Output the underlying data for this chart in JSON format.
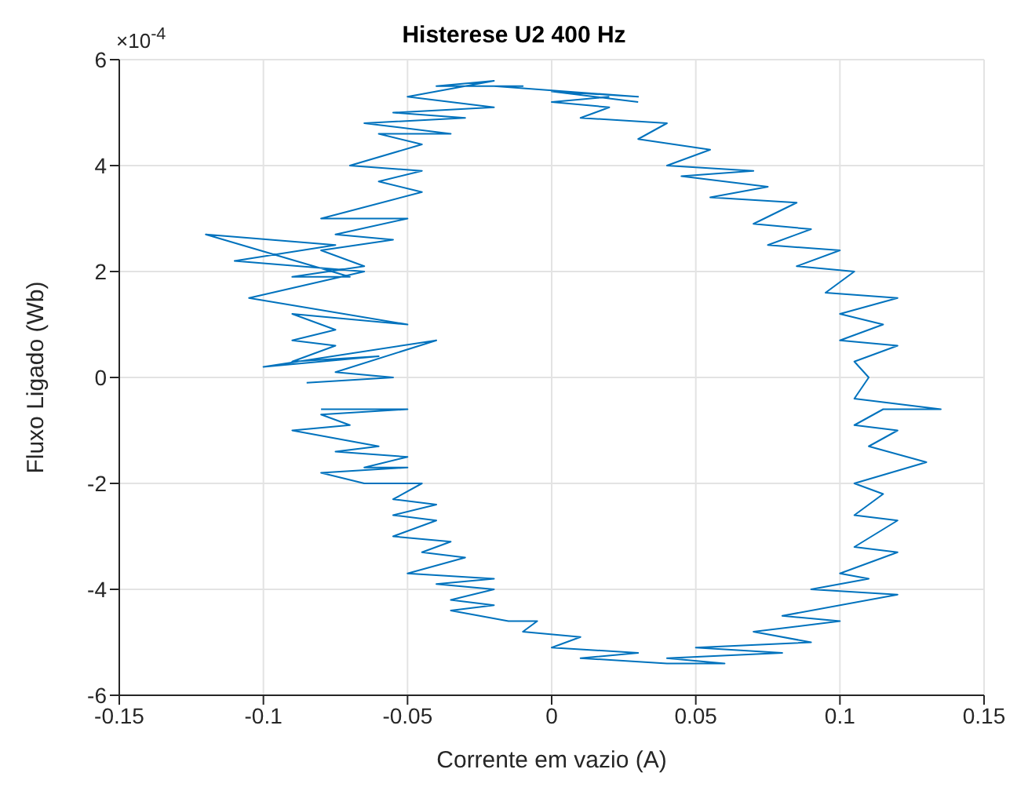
{
  "chart_data": {
    "type": "line",
    "title": "Histerese U2 400 Hz",
    "xlabel": "Corrente em vazio (A)",
    "ylabel": "Fluxo Ligado (Wb)",
    "annotations": [
      "×10$^{-4}$"
    ],
    "xlim": [
      -0.15,
      0.15
    ],
    "xticks": [
      -0.15,
      -0.1,
      -0.05,
      0,
      0.05,
      0.1,
      0.15
    ],
    "ylim": [
      -6,
      6
    ],
    "yticks": [
      -6,
      -4,
      -2,
      0,
      2,
      4,
      6
    ],
    "grid": true,
    "marker": "none",
    "line_style": "solid",
    "series": [
      {
        "color": "#0072bd",
        "x": [
          0.03,
          0.0,
          0.03,
          -0.02,
          -0.01,
          -0.04,
          -0.02,
          -0.05,
          -0.02,
          -0.055,
          -0.03,
          -0.065,
          -0.035,
          -0.06,
          -0.045,
          -0.07,
          -0.045,
          -0.06,
          -0.045,
          -0.08,
          -0.05,
          -0.075,
          -0.055,
          -0.08,
          -0.065,
          -0.09,
          -0.07,
          -0.12,
          -0.075,
          -0.11,
          -0.065,
          -0.105,
          -0.05,
          -0.09,
          -0.075,
          -0.09,
          -0.075,
          -0.09,
          -0.06,
          -0.1,
          -0.04,
          -0.075,
          -0.055,
          -0.085,
          -0.083,
          -0.08,
          -0.05,
          -0.08,
          -0.07,
          -0.09,
          -0.06,
          -0.075,
          -0.05,
          -0.065,
          -0.05,
          -0.08,
          -0.065,
          -0.045,
          -0.055,
          -0.04,
          -0.055,
          -0.04,
          -0.055,
          -0.035,
          -0.045,
          -0.03,
          -0.05,
          -0.02,
          -0.04,
          -0.02,
          -0.035,
          -0.02,
          -0.035,
          -0.015,
          -0.005,
          -0.01,
          0.01,
          0.0,
          0.03,
          0.01,
          0.04,
          0.05,
          0.06,
          0.04,
          0.08,
          0.05,
          0.09,
          0.07,
          0.1,
          0.08,
          0.12,
          0.09,
          0.11,
          0.1,
          0.12,
          0.105,
          0.12,
          0.105,
          0.115,
          0.105,
          0.13,
          0.11,
          0.12,
          0.105,
          0.115,
          0.135,
          0.105,
          0.11,
          0.105,
          0.12,
          0.1,
          0.115,
          0.1,
          0.12,
          0.095,
          0.105,
          0.085,
          0.1,
          0.075,
          0.09,
          0.07,
          0.085,
          0.055,
          0.075,
          0.045,
          0.07,
          0.04,
          0.055,
          0.03,
          0.04,
          0.01,
          0.02,
          0.0,
          0.02
        ],
        "values": [
          5.2,
          5.4,
          5.3,
          5.5,
          5.5,
          5.5,
          5.6,
          5.3,
          5.1,
          5.0,
          4.9,
          4.8,
          4.6,
          4.6,
          4.4,
          4.0,
          3.9,
          3.7,
          3.5,
          3.0,
          3.0,
          2.7,
          2.6,
          2.4,
          2.1,
          1.9,
          1.9,
          2.7,
          2.5,
          2.2,
          2.0,
          1.5,
          1.0,
          1.2,
          0.9,
          0.7,
          0.6,
          0.3,
          0.4,
          0.2,
          0.7,
          0.1,
          0.0,
          -0.1,
          null,
          -0.6,
          -0.6,
          -0.7,
          -0.9,
          -1.0,
          -1.3,
          -1.4,
          -1.5,
          -1.7,
          -1.7,
          -1.8,
          -2.0,
          -2.0,
          -2.3,
          -2.4,
          -2.6,
          -2.7,
          -3.0,
          -3.1,
          -3.3,
          -3.4,
          -3.7,
          -3.8,
          -3.9,
          -4.0,
          -4.2,
          -4.3,
          -4.4,
          -4.6,
          -4.6,
          -4.8,
          -4.9,
          -5.1,
          -5.2,
          -5.3,
          -5.4,
          -5.4,
          -5.4,
          -5.3,
          -5.2,
          -5.1,
          -5.0,
          -4.8,
          -4.6,
          -4.5,
          -4.1,
          -4.0,
          -3.8,
          -3.7,
          -3.3,
          -3.2,
          -2.7,
          -2.6,
          -2.2,
          -2.0,
          -1.6,
          -1.3,
          -1.0,
          -0.9,
          -0.6,
          -0.6,
          -0.4,
          0.0,
          0.3,
          0.6,
          0.7,
          1.0,
          1.2,
          1.5,
          1.6,
          2.0,
          2.1,
          2.4,
          2.5,
          2.8,
          2.9,
          3.3,
          3.4,
          3.6,
          3.8,
          3.9,
          4.0,
          4.3,
          4.5,
          4.8,
          4.9,
          5.1,
          5.2,
          5.3
        ]
      }
    ]
  }
}
